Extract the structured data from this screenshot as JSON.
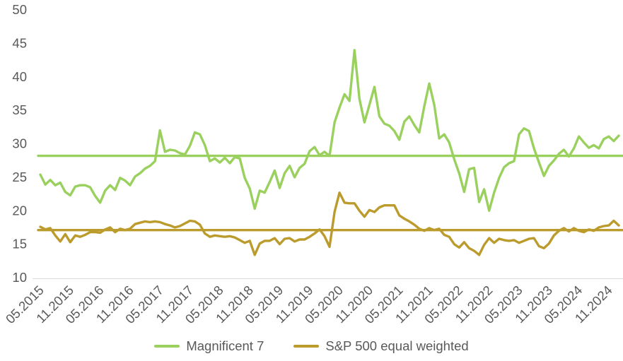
{
  "chart_data": {
    "type": "line",
    "x_frequency": "monthly",
    "x_start": "05.2015",
    "x_end": "01.2025",
    "point_count": 117,
    "x_tick_every": 6,
    "x_tick_labels": [
      "05.2015",
      "11.2015",
      "05.2016",
      "11.2016",
      "05.2017",
      "11.2017",
      "05.2018",
      "11.2018",
      "05.2019",
      "11.2019",
      "05.2020",
      "11.2020",
      "05.2021",
      "11.2021",
      "05.2022",
      "11.2022",
      "05.2023",
      "11.2023",
      "05.2024",
      "11.2024"
    ],
    "ylim": [
      10,
      50
    ],
    "y_ticks": [
      10,
      15,
      20,
      25,
      30,
      35,
      40,
      45,
      50
    ],
    "grid": false,
    "legend_position": "bottom",
    "axis_color": "#d9d9d9",
    "tick_label_color": "#595959",
    "series": [
      {
        "name": "Magnificent 7",
        "color": "#9ad05e",
        "values": [
          25.4,
          23.9,
          24.6,
          23.8,
          24.2,
          22.8,
          22.3,
          23.6,
          23.8,
          23.8,
          23.5,
          22.2,
          21.2,
          23.0,
          23.8,
          23.1,
          24.9,
          24.5,
          23.8,
          25.1,
          25.6,
          26.3,
          26.7,
          27.4,
          32.0,
          28.8,
          29.1,
          29.0,
          28.6,
          28.4,
          29.7,
          31.7,
          31.4,
          29.8,
          27.4,
          27.8,
          27.2,
          27.9,
          27.1,
          28.0,
          27.8,
          24.9,
          23.3,
          20.3,
          23.0,
          22.7,
          24.3,
          26.0,
          23.4,
          25.6,
          26.7,
          25.0,
          26.4,
          27.0,
          28.9,
          29.5,
          28.3,
          28.8,
          28.2,
          33.2,
          35.4,
          37.4,
          36.4,
          44.0,
          36.7,
          33.2,
          35.8,
          38.5,
          34.1,
          33.0,
          32.7,
          31.9,
          30.6,
          33.3,
          34.1,
          32.8,
          31.7,
          35.6,
          39.0,
          35.8,
          30.8,
          31.4,
          30.2,
          27.7,
          25.6,
          22.8,
          26.2,
          26.4,
          21.3,
          23.2,
          20.0,
          22.7,
          24.9,
          26.5,
          27.1,
          27.4,
          31.4,
          32.3,
          31.9,
          29.3,
          27.2,
          25.2,
          26.7,
          27.5,
          28.5,
          29.1,
          28.1,
          29.3,
          31.1,
          30.2,
          29.4,
          29.8,
          29.3,
          30.7,
          31.1,
          30.4,
          31.2
        ]
      },
      {
        "name": "S&P 500 equal weighted",
        "color": "#bc9b2d",
        "values": [
          17.6,
          17.2,
          17.4,
          16.3,
          15.4,
          16.5,
          15.3,
          16.3,
          16.1,
          16.4,
          16.8,
          16.8,
          16.7,
          17.2,
          17.5,
          16.8,
          17.3,
          17.1,
          17.3,
          18.0,
          18.2,
          18.4,
          18.3,
          18.4,
          18.3,
          18.0,
          17.8,
          17.5,
          17.7,
          18.1,
          18.5,
          18.4,
          17.9,
          16.6,
          16.1,
          16.3,
          16.2,
          16.1,
          16.2,
          16.0,
          15.6,
          15.2,
          15.5,
          13.4,
          15.1,
          15.5,
          15.5,
          15.9,
          15.0,
          15.8,
          15.9,
          15.4,
          15.7,
          15.7,
          16.1,
          16.6,
          17.2,
          16.2,
          14.6,
          19.8,
          22.7,
          21.2,
          21.1,
          21.1,
          20.0,
          19.1,
          20.1,
          19.8,
          20.5,
          20.8,
          20.8,
          20.8,
          19.3,
          18.8,
          18.4,
          17.9,
          17.3,
          17.0,
          17.4,
          17.1,
          17.3,
          16.4,
          16.1,
          15.0,
          14.5,
          15.3,
          14.4,
          14.0,
          13.4,
          14.9,
          15.9,
          15.2,
          15.8,
          15.6,
          15.5,
          15.6,
          15.2,
          15.5,
          15.8,
          15.9,
          14.7,
          14.4,
          15.1,
          16.3,
          17.0,
          17.4,
          16.9,
          17.4,
          17.0,
          16.8,
          17.2,
          17.0,
          17.5,
          17.7,
          17.8,
          18.5,
          17.8
        ]
      }
    ],
    "reference_lines": [
      {
        "series": "Magnificent 7",
        "value": 28.2,
        "color": "#9ad05e"
      },
      {
        "series": "S&P 500 equal weighted",
        "value": 17.1,
        "color": "#bc9b2d"
      }
    ]
  }
}
